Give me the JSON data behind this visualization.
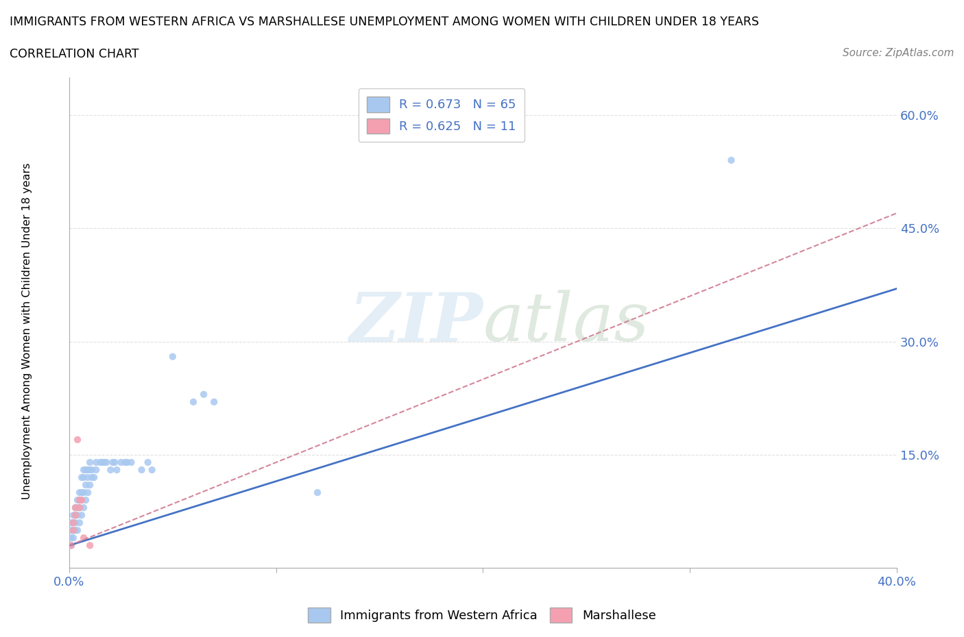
{
  "title_line1": "IMMIGRANTS FROM WESTERN AFRICA VS MARSHALLESE UNEMPLOYMENT AMONG WOMEN WITH CHILDREN UNDER 18 YEARS",
  "title_line2": "CORRELATION CHART",
  "source_text": "Source: ZipAtlas.com",
  "ylabel": "Unemployment Among Women with Children Under 18 years",
  "xlim": [
    0.0,
    0.4
  ],
  "ylim": [
    0.0,
    0.65
  ],
  "x_ticks": [
    0.0,
    0.1,
    0.2,
    0.3,
    0.4
  ],
  "y_ticks": [
    0.0,
    0.15,
    0.3,
    0.45,
    0.6
  ],
  "blue_color": "#a8c8f0",
  "pink_color": "#f4a0b0",
  "line_blue": "#4472c4",
  "line_pink": "#d4869a",
  "watermark_1": "ZIP",
  "watermark_2": "atlas",
  "blue_scatter": [
    [
      0.001,
      0.03
    ],
    [
      0.001,
      0.04
    ],
    [
      0.001,
      0.05
    ],
    [
      0.001,
      0.06
    ],
    [
      0.002,
      0.04
    ],
    [
      0.002,
      0.05
    ],
    [
      0.002,
      0.06
    ],
    [
      0.002,
      0.07
    ],
    [
      0.003,
      0.05
    ],
    [
      0.003,
      0.06
    ],
    [
      0.003,
      0.07
    ],
    [
      0.003,
      0.08
    ],
    [
      0.004,
      0.05
    ],
    [
      0.004,
      0.07
    ],
    [
      0.004,
      0.08
    ],
    [
      0.004,
      0.09
    ],
    [
      0.005,
      0.06
    ],
    [
      0.005,
      0.08
    ],
    [
      0.005,
      0.09
    ],
    [
      0.005,
      0.1
    ],
    [
      0.006,
      0.07
    ],
    [
      0.006,
      0.09
    ],
    [
      0.006,
      0.1
    ],
    [
      0.006,
      0.12
    ],
    [
      0.007,
      0.08
    ],
    [
      0.007,
      0.1
    ],
    [
      0.007,
      0.12
    ],
    [
      0.007,
      0.13
    ],
    [
      0.008,
      0.09
    ],
    [
      0.008,
      0.11
    ],
    [
      0.008,
      0.13
    ],
    [
      0.009,
      0.1
    ],
    [
      0.009,
      0.12
    ],
    [
      0.009,
      0.13
    ],
    [
      0.01,
      0.11
    ],
    [
      0.01,
      0.13
    ],
    [
      0.01,
      0.14
    ],
    [
      0.011,
      0.12
    ],
    [
      0.011,
      0.13
    ],
    [
      0.012,
      0.12
    ],
    [
      0.013,
      0.13
    ],
    [
      0.013,
      0.14
    ],
    [
      0.015,
      0.14
    ],
    [
      0.016,
      0.14
    ],
    [
      0.017,
      0.14
    ],
    [
      0.018,
      0.14
    ],
    [
      0.02,
      0.13
    ],
    [
      0.021,
      0.14
    ],
    [
      0.022,
      0.14
    ],
    [
      0.023,
      0.13
    ],
    [
      0.025,
      0.14
    ],
    [
      0.027,
      0.14
    ],
    [
      0.028,
      0.14
    ],
    [
      0.03,
      0.14
    ],
    [
      0.035,
      0.13
    ],
    [
      0.038,
      0.14
    ],
    [
      0.04,
      0.13
    ],
    [
      0.05,
      0.28
    ],
    [
      0.06,
      0.22
    ],
    [
      0.065,
      0.23
    ],
    [
      0.07,
      0.22
    ],
    [
      0.12,
      0.1
    ],
    [
      0.32,
      0.54
    ]
  ],
  "pink_scatter": [
    [
      0.001,
      0.03
    ],
    [
      0.002,
      0.05
    ],
    [
      0.002,
      0.06
    ],
    [
      0.003,
      0.07
    ],
    [
      0.003,
      0.08
    ],
    [
      0.004,
      0.17
    ],
    [
      0.005,
      0.08
    ],
    [
      0.005,
      0.09
    ],
    [
      0.006,
      0.09
    ],
    [
      0.007,
      0.04
    ],
    [
      0.01,
      0.03
    ]
  ],
  "blue_trend_x": [
    0.0,
    0.4
  ],
  "blue_trend_y": [
    0.03,
    0.37
  ],
  "pink_trend_x": [
    0.0,
    0.4
  ],
  "pink_trend_y": [
    0.03,
    0.47
  ],
  "background_color": "#ffffff",
  "grid_color": "#e0e0e0"
}
